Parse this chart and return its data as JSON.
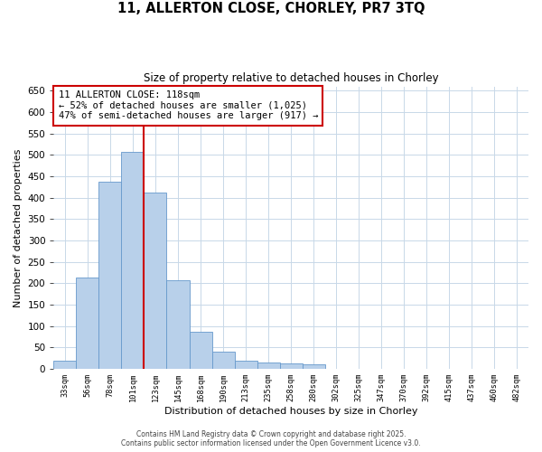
{
  "title_line1": "11, ALLERTON CLOSE, CHORLEY, PR7 3TQ",
  "title_line2": "Size of property relative to detached houses in Chorley",
  "xlabel": "Distribution of detached houses by size in Chorley",
  "ylabel": "Number of detached properties",
  "bar_labels": [
    "33sqm",
    "56sqm",
    "78sqm",
    "101sqm",
    "123sqm",
    "145sqm",
    "168sqm",
    "190sqm",
    "213sqm",
    "235sqm",
    "258sqm",
    "280sqm",
    "302sqm",
    "325sqm",
    "347sqm",
    "370sqm",
    "392sqm",
    "415sqm",
    "437sqm",
    "460sqm",
    "482sqm"
  ],
  "bar_values": [
    20,
    213,
    438,
    507,
    413,
    207,
    87,
    40,
    20,
    15,
    13,
    11,
    0,
    0,
    0,
    0,
    0,
    0,
    0,
    0,
    0
  ],
  "bar_color": "#b8d0ea",
  "bar_edge_color": "#6699cc",
  "vline_color": "#cc0000",
  "annotation_text": "11 ALLERTON CLOSE: 118sqm\n← 52% of detached houses are smaller (1,025)\n47% of semi-detached houses are larger (917) →",
  "annotation_box_color": "#ffffff",
  "annotation_box_edge": "#cc0000",
  "ylim": [
    0,
    660
  ],
  "bg_color": "#ffffff",
  "grid_color": "#c8d8e8",
  "footer_line1": "Contains HM Land Registry data © Crown copyright and database right 2025.",
  "footer_line2": "Contains public sector information licensed under the Open Government Licence v3.0."
}
